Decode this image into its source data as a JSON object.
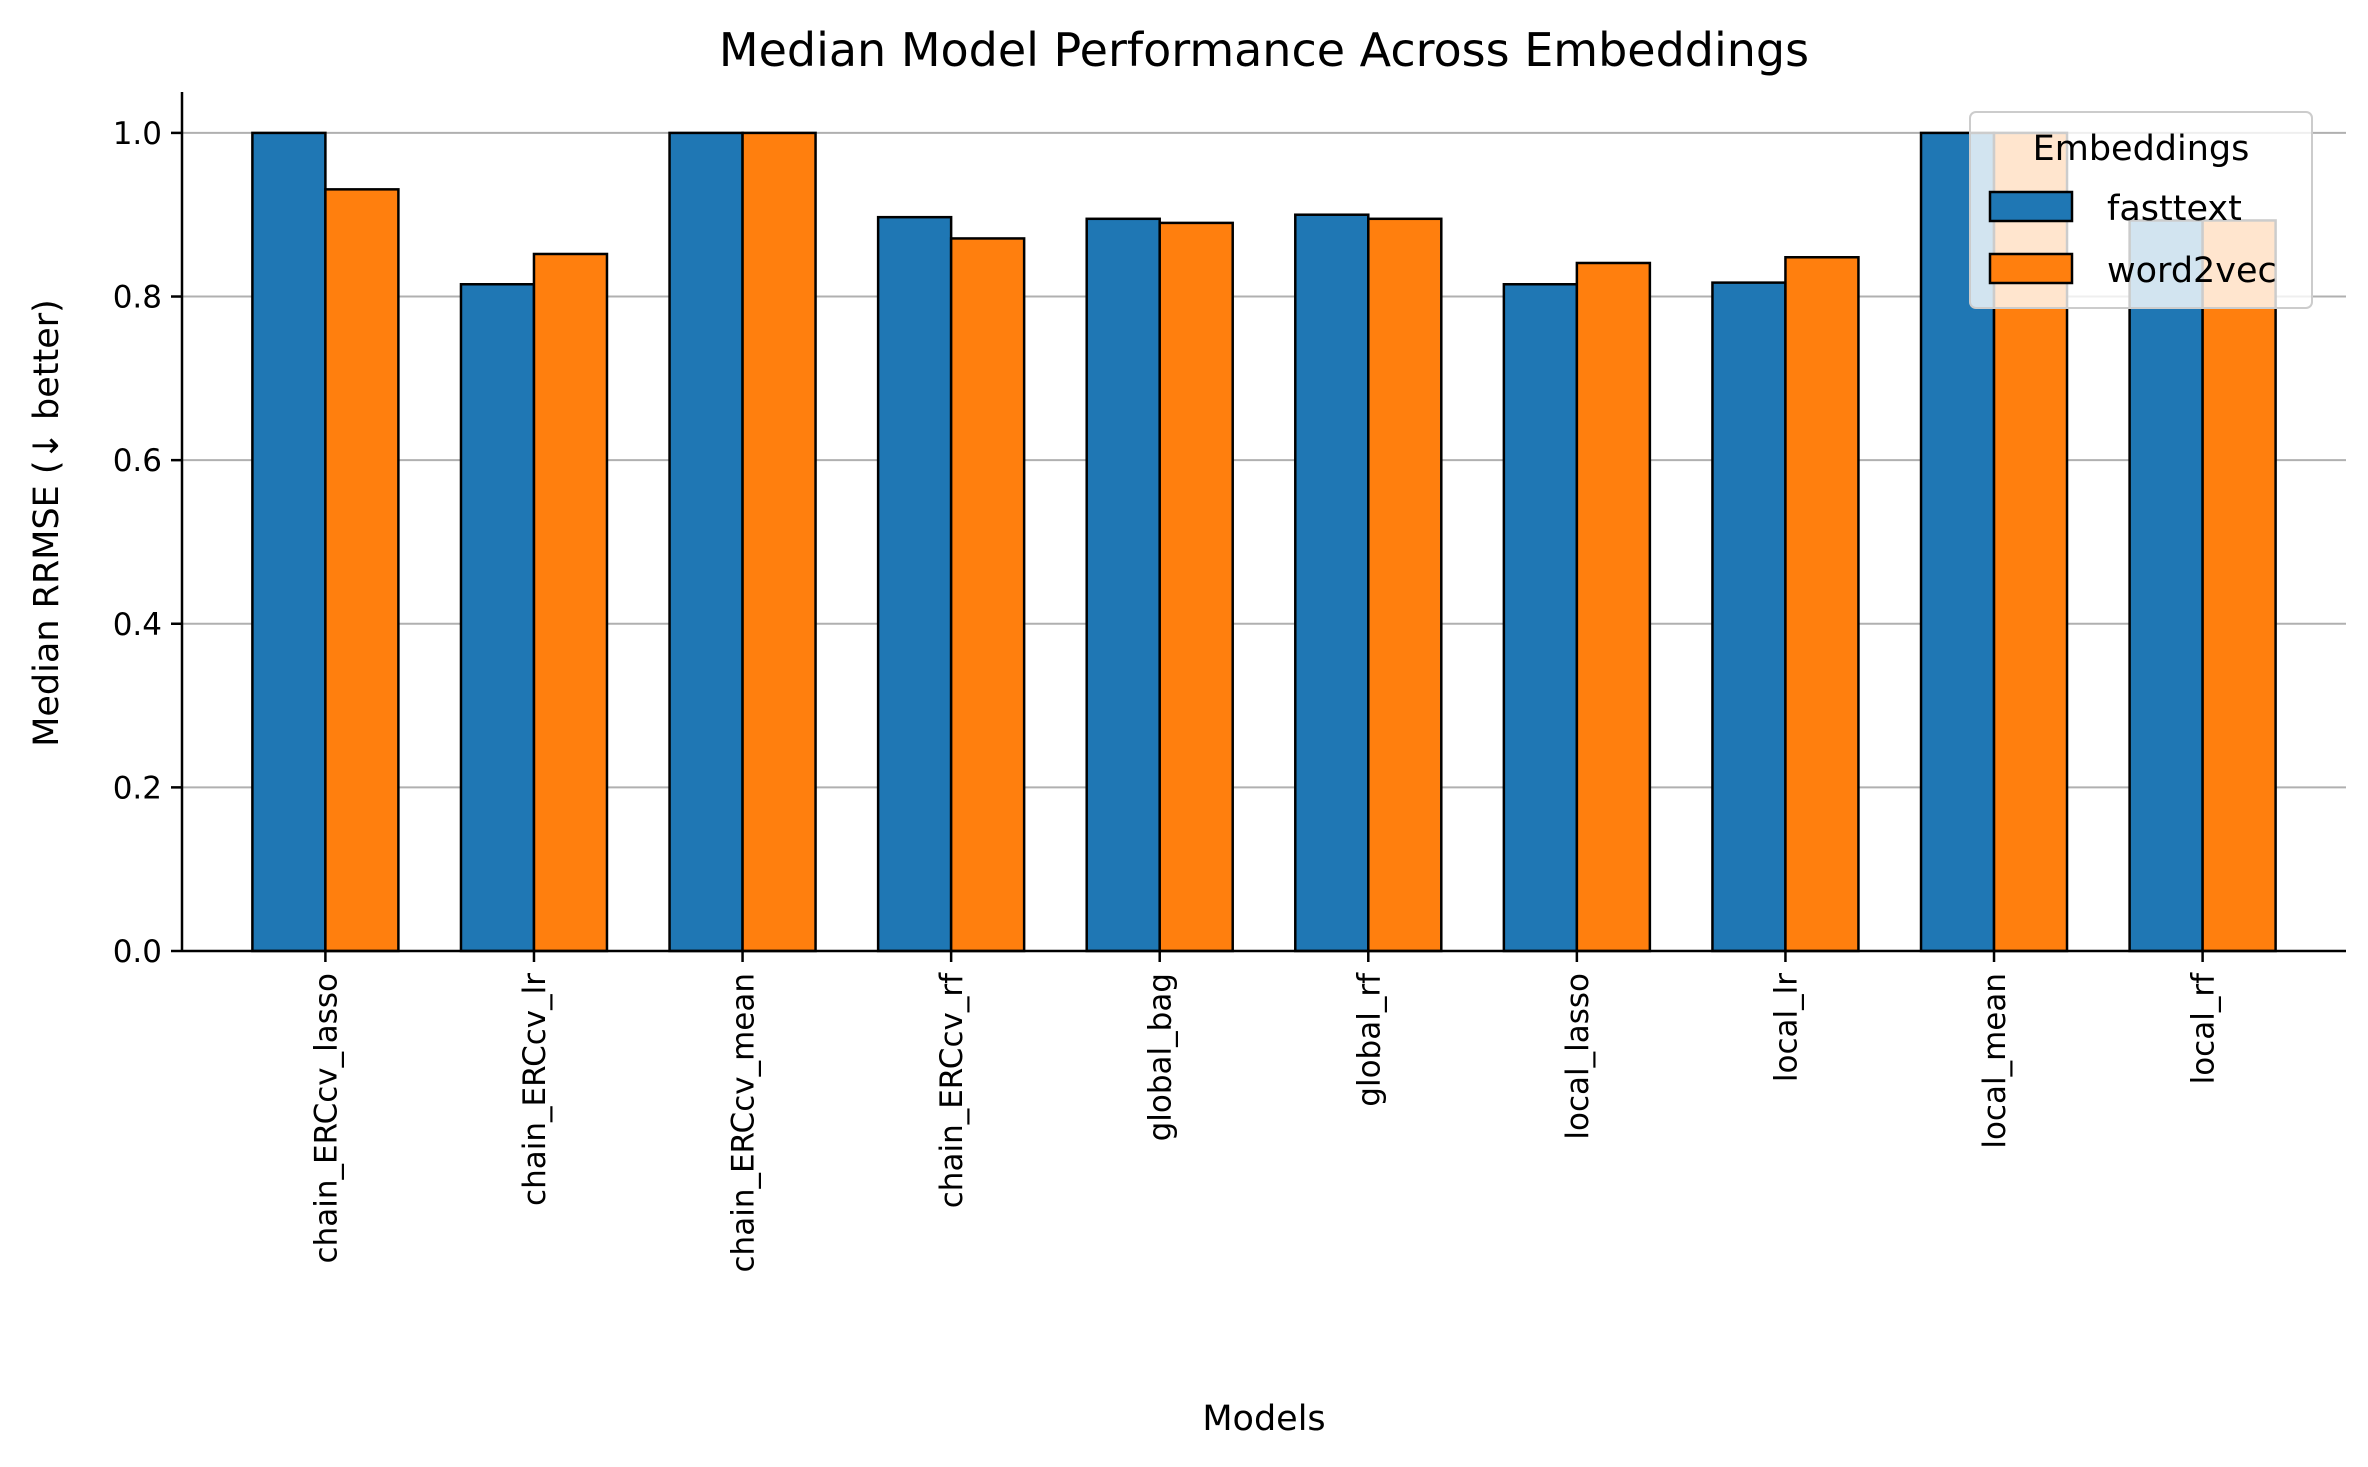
{
  "chart_data": {
    "type": "bar",
    "title": "Median Model Performance Across Embeddings",
    "xlabel": "Models",
    "ylabel": "Median RRMSE (↓ better)",
    "ylim": [
      0,
      1.05
    ],
    "yticks": [
      "0.0",
      "0.2",
      "0.4",
      "0.6",
      "0.8",
      "1.0"
    ],
    "ytick_values": [
      0,
      0.2,
      0.4,
      0.6,
      0.8,
      1.0
    ],
    "grid": "horizontal",
    "legend": {
      "title": "Embeddings",
      "placement": "top-right"
    },
    "categories": [
      "chain_ERCcv_lasso",
      "chain_ERCcv_lr",
      "chain_ERCcv_mean",
      "chain_ERCcv_rf",
      "global_bag",
      "global_rf",
      "local_lasso",
      "local_lr",
      "local_mean",
      "local_rf"
    ],
    "series": [
      {
        "name": "fasttext",
        "color": "#1f77b4",
        "values": [
          1.0,
          0.815,
          1.0,
          0.897,
          0.895,
          0.9,
          0.815,
          0.817,
          1.0,
          0.893
        ]
      },
      {
        "name": "word2vec",
        "color": "#ff7f0e",
        "values": [
          0.931,
          0.852,
          1.0,
          0.871,
          0.89,
          0.895,
          0.841,
          0.848,
          1.0,
          0.893
        ]
      }
    ]
  }
}
